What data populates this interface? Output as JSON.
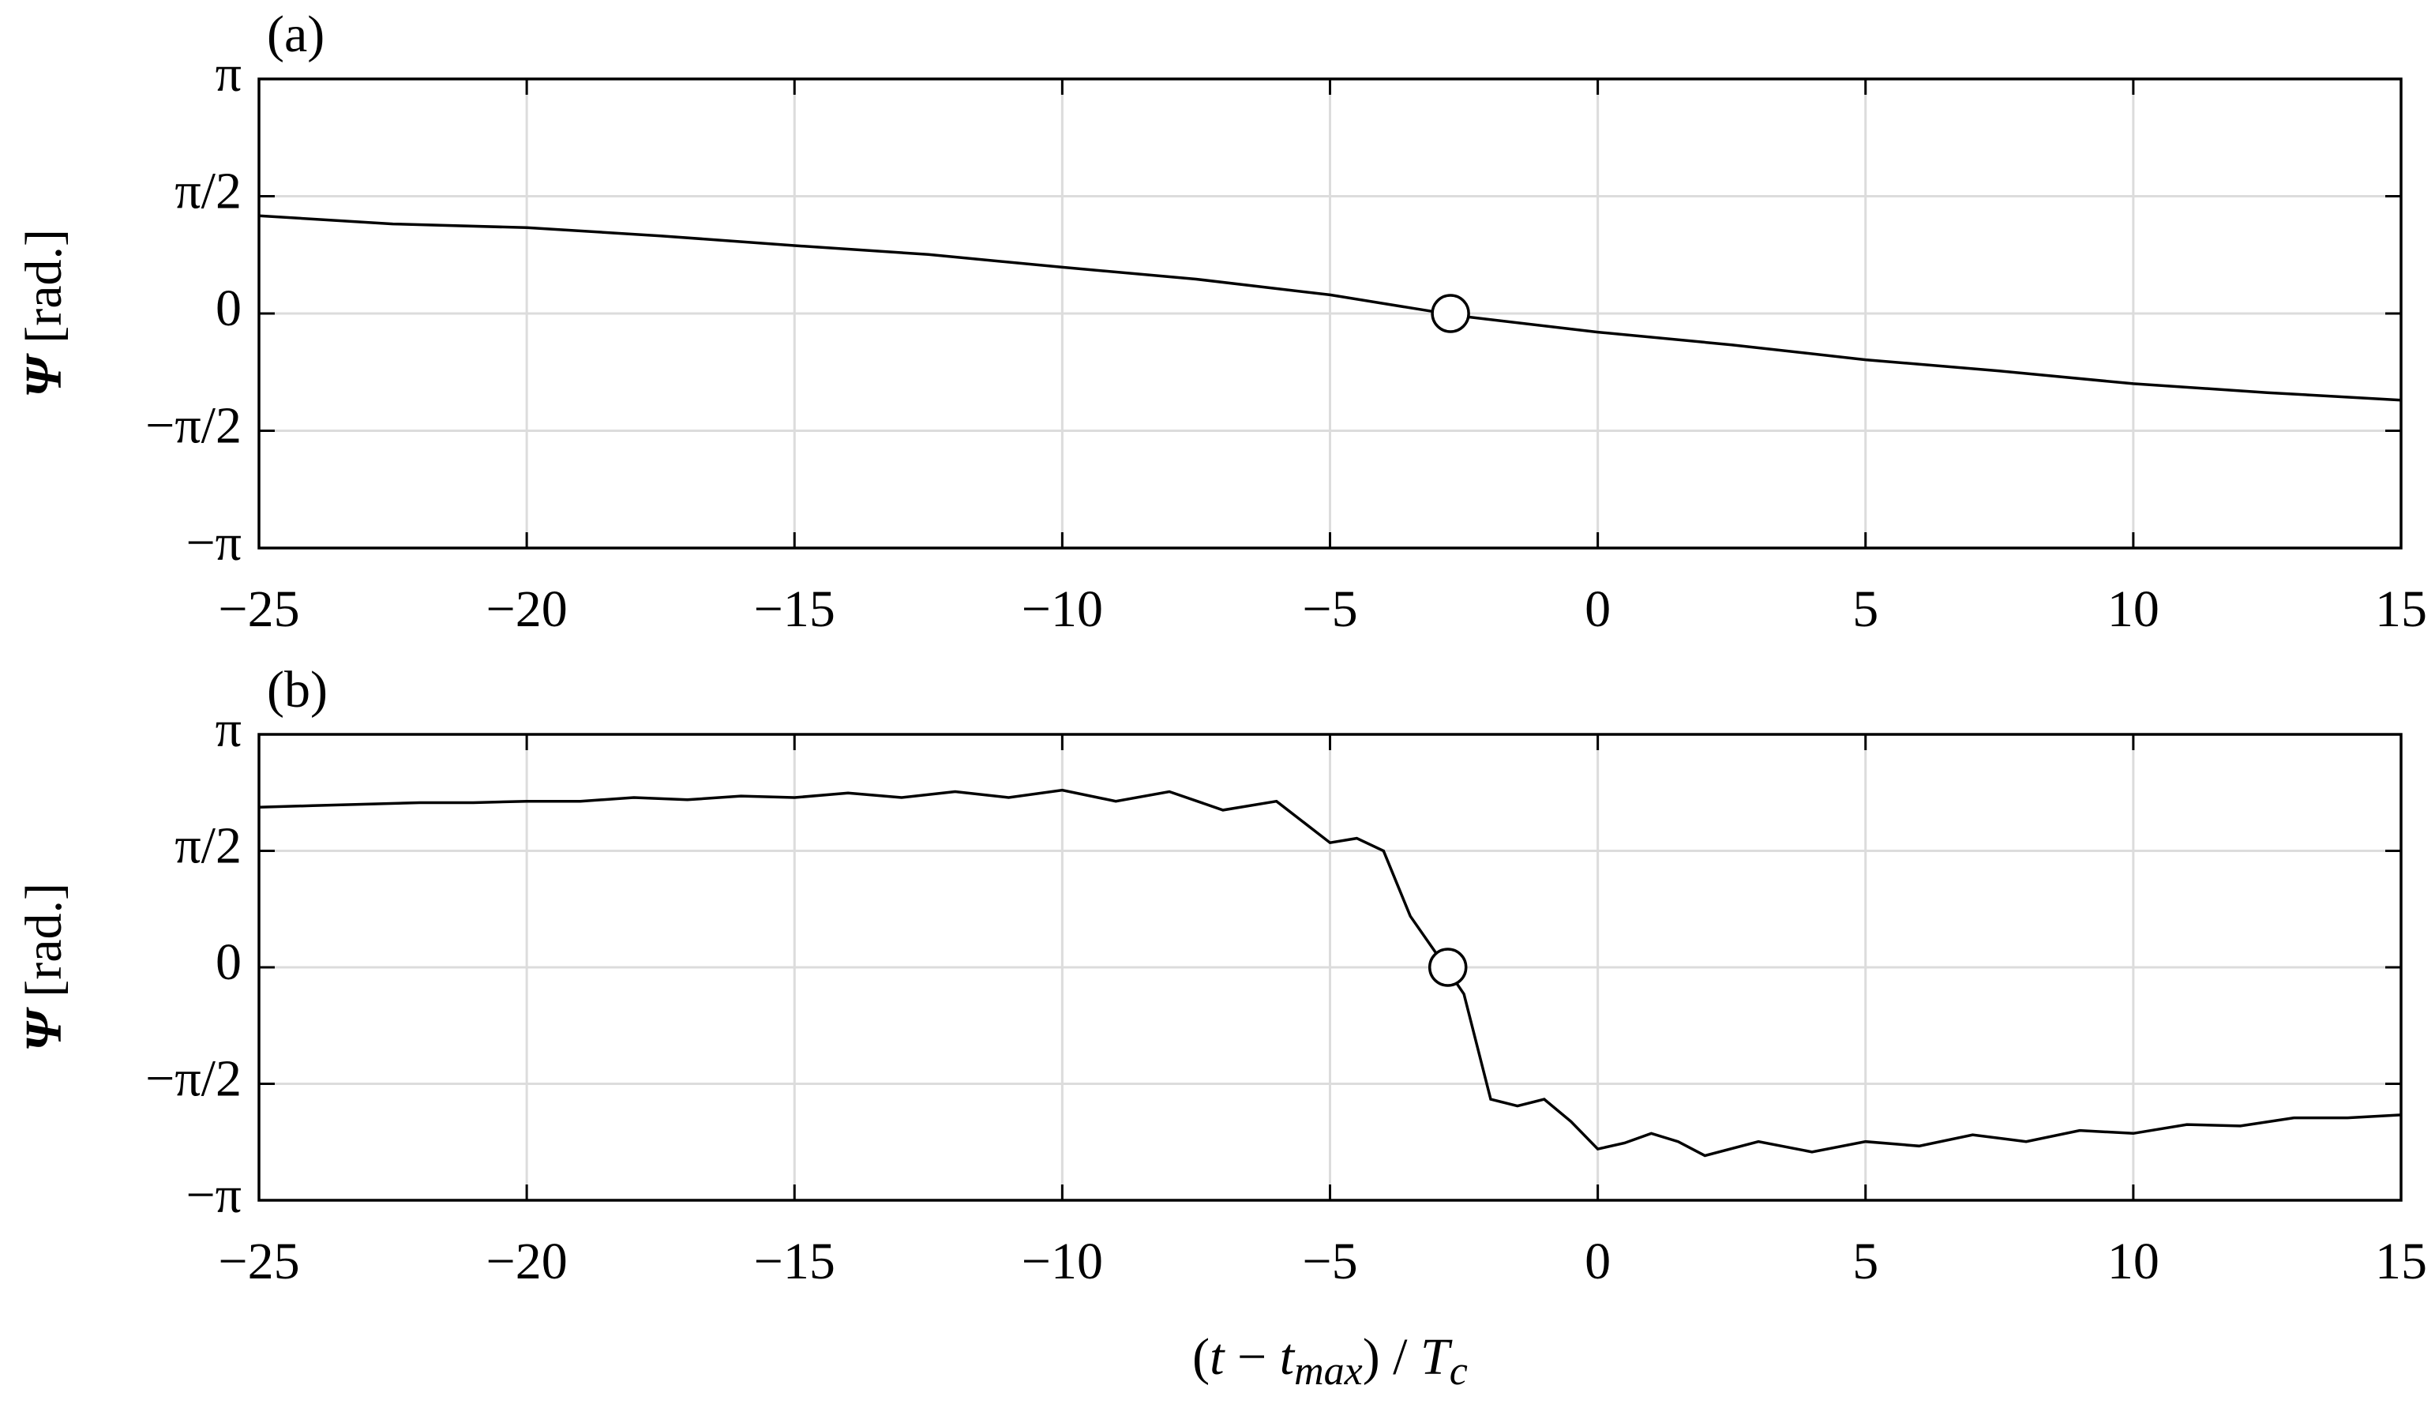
{
  "chart_data": [
    {
      "type": "line",
      "panel_label": "(a)",
      "ylabel": [
        "Ψ",
        " [rad.]"
      ],
      "x": [
        -25,
        -22.5,
        -20,
        -17.5,
        -15,
        -12.5,
        -10,
        -7.5,
        -5,
        -2.5,
        0,
        2.5,
        5,
        7.5,
        10,
        12.5,
        15
      ],
      "series": [
        {
          "color": "#000000",
          "values": [
            1.31,
            1.2,
            1.15,
            1.04,
            0.91,
            0.79,
            0.62,
            0.46,
            0.25,
            -0.04,
            -0.25,
            -0.42,
            -0.62,
            -0.77,
            -0.94,
            -1.06,
            -1.16
          ]
        }
      ],
      "markers": {
        "x": [
          -2.75
        ],
        "y": [
          0
        ]
      },
      "xlim": [
        -25,
        15
      ],
      "ylim": [
        -3.14159,
        3.14159
      ],
      "xticks": [
        {
          "value": -25,
          "label": "−25"
        },
        {
          "value": -20,
          "label": "−20"
        },
        {
          "value": -15,
          "label": "−15"
        },
        {
          "value": -10,
          "label": "−10"
        },
        {
          "value": -5,
          "label": "−5"
        },
        0,
        5,
        10,
        15
      ],
      "yticks": [
        {
          "value": -3.14159,
          "label": "−π"
        },
        {
          "value": -1.5708,
          "label": "−π/2"
        },
        0,
        {
          "value": 1.5708,
          "label": "π/2"
        },
        {
          "value": 3.14159,
          "label": "π"
        }
      ],
      "grid": true
    },
    {
      "type": "line",
      "panel_label": "(b)",
      "ylabel": [
        "Ψ",
        " [rad.]"
      ],
      "xlabel": [
        "(",
        "t",
        " − ",
        "t",
        "max",
        ") / ",
        "T",
        "c"
      ],
      "x": [
        -25,
        -24,
        -23,
        -22,
        -21,
        -20,
        -19,
        -18,
        -17,
        -16,
        -15,
        -14,
        -13,
        -12,
        -11,
        -10,
        -9,
        -8,
        -7,
        -6,
        -5,
        -4.5,
        -4,
        -3.5,
        -3,
        -2.5,
        -2,
        -1.5,
        -1,
        -0.5,
        0,
        0.5,
        1,
        1.5,
        2,
        3,
        4,
        5,
        6,
        7,
        8,
        9,
        10,
        11,
        12,
        13,
        14,
        15
      ],
      "series": [
        {
          "color": "#000000",
          "values": [
            2.16,
            2.18,
            2.2,
            2.22,
            2.22,
            2.24,
            2.24,
            2.29,
            2.26,
            2.31,
            2.29,
            2.35,
            2.29,
            2.37,
            2.29,
            2.39,
            2.24,
            2.37,
            2.12,
            2.24,
            1.68,
            1.74,
            1.57,
            0.69,
            0.17,
            -0.36,
            -1.78,
            -1.87,
            -1.78,
            -2.08,
            -2.45,
            -2.37,
            -2.24,
            -2.35,
            -2.54,
            -2.35,
            -2.49,
            -2.35,
            -2.41,
            -2.26,
            -2.35,
            -2.2,
            -2.24,
            -2.12,
            -2.14,
            -2.03,
            -2.03,
            -1.99
          ]
        }
      ],
      "markers": {
        "x": [
          -2.8
        ],
        "y": [
          0
        ]
      },
      "xlim": [
        -25,
        15
      ],
      "ylim": [
        -3.14159,
        3.14159
      ],
      "xticks": [
        {
          "value": -25,
          "label": "−25"
        },
        {
          "value": -20,
          "label": "−20"
        },
        {
          "value": -15,
          "label": "−15"
        },
        {
          "value": -10,
          "label": "−10"
        },
        {
          "value": -5,
          "label": "−5"
        },
        0,
        5,
        10,
        15
      ],
      "yticks": [
        {
          "value": -3.14159,
          "label": "−π"
        },
        {
          "value": -1.5708,
          "label": "−π/2"
        },
        0,
        {
          "value": 1.5708,
          "label": "π/2"
        },
        {
          "value": 3.14159,
          "label": "π"
        }
      ],
      "grid": true
    }
  ]
}
